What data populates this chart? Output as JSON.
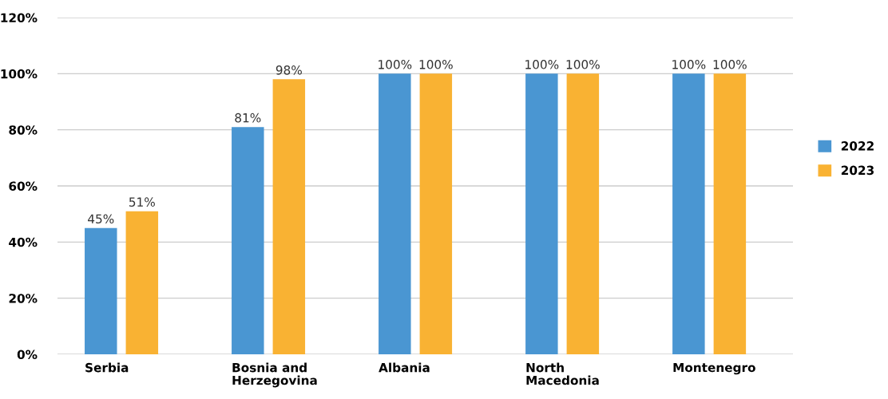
{
  "chart_data": {
    "type": "bar",
    "categories": [
      "Serbia",
      "Bosnia and Herzegovina",
      "Albania",
      "North Macedonia",
      "Montenegro"
    ],
    "series": [
      {
        "name": "2022",
        "color": "#4a96d2",
        "values": [
          45,
          81,
          100,
          100,
          100
        ],
        "value_labels": [
          "45%",
          "81%",
          "100%",
          "100%",
          "100%"
        ]
      },
      {
        "name": "2023",
        "color": "#f9b233",
        "values": [
          51,
          98,
          100,
          100,
          100
        ],
        "value_labels": [
          "51%",
          "98%",
          "100%",
          "100%",
          "100%"
        ]
      }
    ],
    "ylim": [
      0,
      120
    ],
    "yticks": [
      {
        "value": 0,
        "label": "0%"
      },
      {
        "value": 20,
        "label": "20%"
      },
      {
        "value": 40,
        "label": "40%"
      },
      {
        "value": 60,
        "label": "60%"
      },
      {
        "value": 80,
        "label": "80%"
      },
      {
        "value": 100,
        "label": "100%"
      },
      {
        "value": 120,
        "label": "120%"
      }
    ],
    "grid": "y",
    "legend": "right"
  }
}
